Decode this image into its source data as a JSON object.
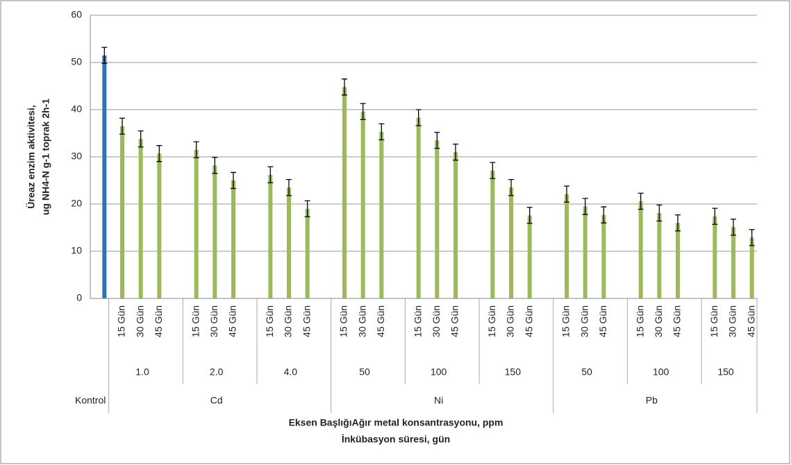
{
  "chart_data": {
    "type": "bar",
    "y_title": [
      "Üreaz enzim aktivitesi,",
      "ug NH4-N g-1 toprak 2h-1"
    ],
    "x_title": [
      "Eksen BaşlığıAğır metal konsantrasyonu, ppm",
      "İnkübasyon süresi, gün"
    ],
    "ylim": [
      0,
      60
    ],
    "yticks": [
      0,
      10,
      20,
      30,
      40,
      50,
      60
    ],
    "grid": true,
    "control": {
      "name": "Kontrol",
      "value": 51.5,
      "error": 1.7,
      "color": "#2e75b6"
    },
    "color": "#9bbb59",
    "groups": [
      {
        "name": "Cd",
        "subgroups": [
          {
            "name": "1.0",
            "categories": [
              "15 Gün",
              "30 Gün",
              "45 Gün"
            ],
            "values": [
              36.5,
              33.8,
              30.7
            ],
            "errors": [
              1.7,
              1.7,
              1.7
            ]
          },
          {
            "name": "2.0",
            "categories": [
              "15 Gün",
              "30 Gün",
              "45 Gün"
            ],
            "values": [
              31.5,
              28.2,
              25.0
            ],
            "errors": [
              1.7,
              1.7,
              1.7
            ]
          },
          {
            "name": "4.0",
            "categories": [
              "15 Gün",
              "30 Gün",
              "45 Gün"
            ],
            "values": [
              26.2,
              23.5,
              19.0
            ],
            "errors": [
              1.7,
              1.7,
              1.7
            ]
          }
        ]
      },
      {
        "name": "Ni",
        "subgroups": [
          {
            "name": "50",
            "categories": [
              "15 Gün",
              "30 Gün",
              "45 Gün"
            ],
            "values": [
              44.8,
              39.6,
              35.3
            ],
            "errors": [
              1.7,
              1.7,
              1.7
            ]
          },
          {
            "name": "100",
            "categories": [
              "15 Gün",
              "30 Gün",
              "45 Gün"
            ],
            "values": [
              38.3,
              33.5,
              31.0
            ],
            "errors": [
              1.7,
              1.7,
              1.7
            ]
          },
          {
            "name": "150",
            "categories": [
              "15 Gün",
              "30 Gün",
              "45 Gün"
            ],
            "values": [
              27.1,
              23.5,
              17.6
            ],
            "errors": [
              1.7,
              1.7,
              1.7
            ]
          }
        ]
      },
      {
        "name": "Pb",
        "subgroups": [
          {
            "name": "50",
            "categories": [
              "15 Gün",
              "30 Gün",
              "45 Gün"
            ],
            "values": [
              22.1,
              19.5,
              17.7
            ],
            "errors": [
              1.7,
              1.7,
              1.7
            ]
          },
          {
            "name": "100",
            "categories": [
              "15 Gün",
              "30 Gün",
              "45 Gün"
            ],
            "values": [
              20.6,
              18.1,
              16.0
            ],
            "errors": [
              1.7,
              1.7,
              1.7
            ]
          },
          {
            "name": "150",
            "categories": [
              "15 Gün",
              "30 Gün",
              "45 Gün"
            ],
            "values": [
              17.4,
              15.1,
              12.9
            ],
            "errors": [
              1.7,
              1.7,
              1.7
            ]
          }
        ]
      }
    ]
  }
}
